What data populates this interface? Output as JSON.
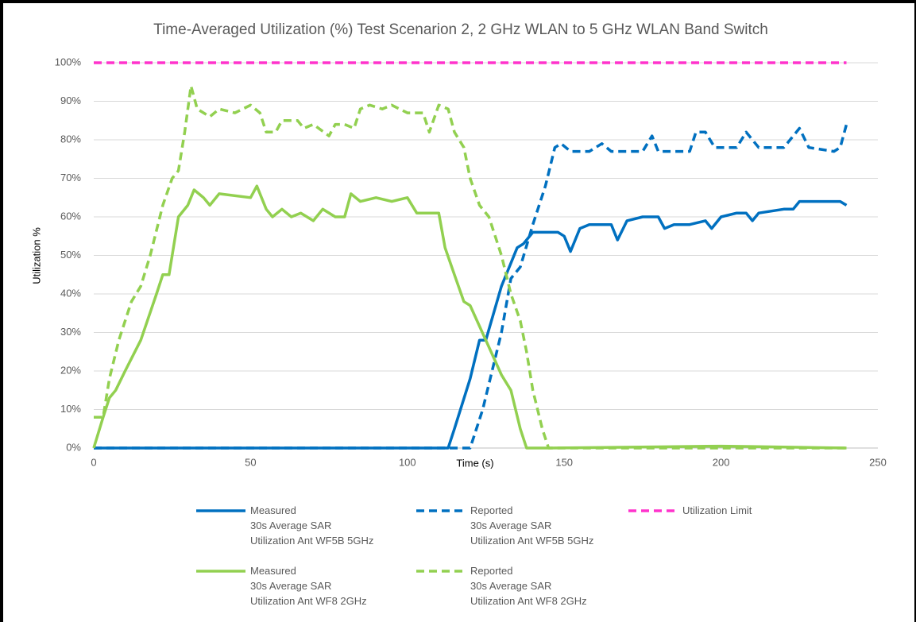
{
  "chart_data": {
    "type": "line",
    "title": "Time-Averaged Utilization (%) Test Scenarion 2, 2 GHz WLAN to 5 GHz WLAN Band Switch",
    "xlabel": "Time (s)",
    "ylabel": "Utilization %",
    "xlim": [
      0,
      250
    ],
    "xticks": [
      0,
      50,
      100,
      150,
      200,
      250
    ],
    "ylim": [
      0,
      100
    ],
    "yticks": [
      {
        "value": 0,
        "label": "0%"
      },
      {
        "value": 10,
        "label": "10%"
      },
      {
        "value": 20,
        "label": "20%"
      },
      {
        "value": 30,
        "label": "30%"
      },
      {
        "value": 40,
        "label": "40%"
      },
      {
        "value": 50,
        "label": "50%"
      },
      {
        "value": 60,
        "label": "60%"
      },
      {
        "value": 70,
        "label": "70%"
      },
      {
        "value": 80,
        "label": "80%"
      },
      {
        "value": 90,
        "label": "90%"
      },
      {
        "value": 100,
        "label": "100%"
      }
    ],
    "grid": true,
    "legend": "bottom",
    "series": [
      {
        "name": "Measured\n30s Average SAR\nUtilization Ant WF5B 5GHz",
        "color": "#0070c0",
        "dashed": false,
        "x": [
          0,
          113,
          115,
          120,
          123,
          125,
          130,
          135,
          137,
          140,
          145,
          148,
          150,
          152,
          155,
          158,
          165,
          167,
          170,
          175,
          180,
          182,
          185,
          190,
          195,
          197,
          200,
          205,
          208,
          210,
          212,
          220,
          223,
          225,
          230,
          235,
          238,
          240
        ],
        "values": [
          0,
          0,
          5,
          18,
          28,
          28,
          42,
          52,
          53,
          56,
          56,
          56,
          55,
          51,
          57,
          58,
          58,
          54,
          59,
          60,
          60,
          57,
          58,
          58,
          59,
          57,
          60,
          61,
          61,
          59,
          61,
          62,
          62,
          64,
          64,
          64,
          64,
          63
        ]
      },
      {
        "name": "Reported\n30s Average SAR\nUtilization Ant WF5B 5GHz",
        "color": "#0070c0",
        "dashed": true,
        "x": [
          0,
          120,
          122,
          124,
          127,
          130,
          133,
          136,
          140,
          144,
          147,
          149,
          152,
          158,
          162,
          165,
          175,
          178,
          180,
          190,
          192,
          195,
          198,
          205,
          208,
          212,
          220,
          225,
          228,
          236,
          238,
          240
        ],
        "values": [
          0,
          0,
          5,
          10,
          20,
          30,
          44,
          47,
          58,
          68,
          78,
          79,
          77,
          77,
          79,
          77,
          77,
          81,
          77,
          77,
          82,
          82,
          78,
          78,
          82,
          78,
          78,
          83,
          78,
          77,
          78,
          84
        ]
      },
      {
        "name": "Utilization Limit",
        "color": "#ff33cc",
        "dashed": true,
        "x": [
          0,
          240
        ],
        "values": [
          100,
          100
        ]
      },
      {
        "name": "Measured\n30s Average SAR\nUtilization Ant WF8 2GHz",
        "color": "#92d050",
        "dashed": false,
        "x": [
          0,
          3,
          5,
          7,
          10,
          15,
          20,
          22,
          24,
          27,
          30,
          32,
          35,
          37,
          40,
          50,
          52,
          55,
          57,
          60,
          63,
          66,
          70,
          73,
          77,
          80,
          82,
          85,
          90,
          95,
          100,
          103,
          107,
          110,
          112,
          115,
          118,
          120,
          125,
          130,
          133,
          136,
          138,
          145,
          180,
          200,
          210,
          240
        ],
        "values": [
          0,
          8,
          13,
          15,
          20,
          28,
          40,
          45,
          45,
          60,
          63,
          67,
          65,
          63,
          66,
          65,
          68,
          62,
          60,
          62,
          60,
          61,
          59,
          62,
          60,
          60,
          66,
          64,
          65,
          64,
          65,
          61,
          61,
          61,
          52,
          45,
          38,
          37,
          28,
          19,
          15,
          5,
          0,
          0,
          0.3,
          0.5,
          0.4,
          0
        ]
      },
      {
        "name": "Reported\n30s Average SAR\nUtilization Ant WF8 2GHz",
        "color": "#92d050",
        "dashed": true,
        "x": [
          0,
          3,
          5,
          8,
          12,
          15,
          18,
          22,
          25,
          27,
          29,
          31,
          33,
          37,
          40,
          45,
          50,
          53,
          55,
          58,
          60,
          65,
          67,
          70,
          75,
          77,
          80,
          83,
          85,
          88,
          92,
          95,
          100,
          105,
          107,
          110,
          113,
          115,
          118,
          120,
          123,
          126,
          130,
          133,
          136,
          138,
          140,
          143,
          145,
          240
        ],
        "values": [
          8,
          8,
          18,
          28,
          38,
          42,
          50,
          63,
          70,
          72,
          82,
          94,
          88,
          86,
          88,
          87,
          89,
          87,
          82,
          82,
          85,
          85,
          83,
          84,
          81,
          84,
          84,
          83,
          88,
          89,
          88,
          89,
          87,
          87,
          82,
          89,
          88,
          82,
          78,
          70,
          63,
          60,
          50,
          40,
          33,
          25,
          15,
          5,
          0,
          0
        ]
      }
    ]
  }
}
